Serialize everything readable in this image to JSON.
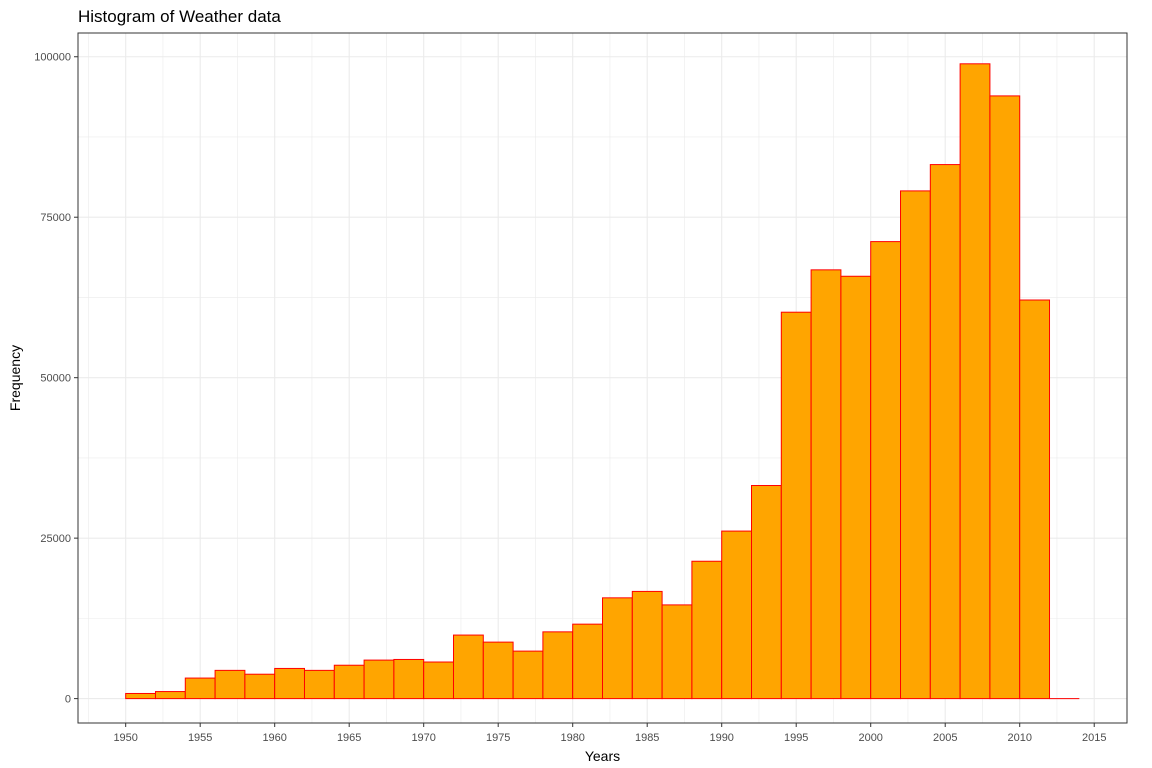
{
  "chart_data": {
    "type": "bar",
    "title": "Histogram of Weather data",
    "xlabel": "Years",
    "ylabel": "Frequency",
    "bins": [
      {
        "start": 1950,
        "end": 1952,
        "value": 800
      },
      {
        "start": 1952,
        "end": 1954,
        "value": 1100
      },
      {
        "start": 1954,
        "end": 1956,
        "value": 3200
      },
      {
        "start": 1956,
        "end": 1958,
        "value": 4400
      },
      {
        "start": 1958,
        "end": 1960,
        "value": 3800
      },
      {
        "start": 1960,
        "end": 1962,
        "value": 4700
      },
      {
        "start": 1962,
        "end": 1964,
        "value": 4400
      },
      {
        "start": 1964,
        "end": 1966,
        "value": 5200
      },
      {
        "start": 1966,
        "end": 1968,
        "value": 6000
      },
      {
        "start": 1968,
        "end": 1970,
        "value": 6100
      },
      {
        "start": 1970,
        "end": 1972,
        "value": 5700
      },
      {
        "start": 1972,
        "end": 1974,
        "value": 9900
      },
      {
        "start": 1974,
        "end": 1976,
        "value": 8800
      },
      {
        "start": 1976,
        "end": 1978,
        "value": 7400
      },
      {
        "start": 1978,
        "end": 1980,
        "value": 10400
      },
      {
        "start": 1980,
        "end": 1982,
        "value": 11600
      },
      {
        "start": 1982,
        "end": 1984,
        "value": 15700
      },
      {
        "start": 1984,
        "end": 1986,
        "value": 16700
      },
      {
        "start": 1986,
        "end": 1988,
        "value": 14600
      },
      {
        "start": 1988,
        "end": 1990,
        "value": 21400
      },
      {
        "start": 1990,
        "end": 1992,
        "value": 26100
      },
      {
        "start": 1992,
        "end": 1994,
        "value": 33200
      },
      {
        "start": 1994,
        "end": 1996,
        "value": 60200
      },
      {
        "start": 1996,
        "end": 1998,
        "value": 66800
      },
      {
        "start": 1998,
        "end": 2000,
        "value": 65800
      },
      {
        "start": 2000,
        "end": 2002,
        "value": 71200
      },
      {
        "start": 2002,
        "end": 2004,
        "value": 79100
      },
      {
        "start": 2004,
        "end": 2006,
        "value": 83200
      },
      {
        "start": 2006,
        "end": 2008,
        "value": 98900
      },
      {
        "start": 2008,
        "end": 2010,
        "value": 93900
      },
      {
        "start": 2010,
        "end": 2012,
        "value": 62100
      },
      {
        "start": 2012,
        "end": 2014,
        "value": 0
      }
    ],
    "xlim": [
      1946.8,
      2017.2
    ],
    "ylim": [
      -3800,
      103700
    ],
    "x_ticks": [
      1950,
      1955,
      1960,
      1965,
      1970,
      1975,
      1980,
      1985,
      1990,
      1995,
      2000,
      2005,
      2010,
      2015
    ],
    "y_ticks": [
      0,
      25000,
      50000,
      75000,
      100000
    ],
    "y_tick_labels": [
      "0",
      "25000",
      "50000",
      "75000",
      "100000"
    ],
    "grid": true,
    "fill_color": "#FFA500",
    "outline_color": "#FF0000"
  }
}
